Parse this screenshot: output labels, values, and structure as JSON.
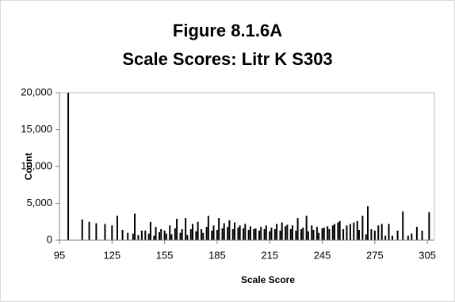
{
  "chart_data": {
    "type": "bar",
    "title": [
      "Figure 8.1.6A",
      "Scale Scores: Litr K S303"
    ],
    "x_label": "Scale Score",
    "y_label": "Count",
    "color": "#000000",
    "x": [
      100,
      108,
      112,
      116,
      121,
      125,
      128,
      131,
      134,
      137,
      138,
      140,
      142,
      144,
      146,
      147,
      149,
      150,
      152,
      153,
      155,
      156,
      158,
      159,
      161,
      162,
      164,
      165,
      167,
      168,
      170,
      171,
      173,
      174,
      176,
      177,
      179,
      180,
      182,
      183,
      185,
      186,
      188,
      189,
      191,
      192,
      194,
      195,
      197,
      198,
      200,
      201,
      203,
      204,
      206,
      207,
      209,
      210,
      212,
      213,
      215,
      216,
      218,
      219,
      221,
      222,
      224,
      225,
      227,
      228,
      230,
      231,
      233,
      234,
      236,
      237,
      239,
      240,
      242,
      243,
      245,
      246,
      248,
      249,
      251,
      252,
      254,
      255,
      257,
      259,
      261,
      263,
      265,
      266,
      268,
      270,
      271,
      273,
      275,
      277,
      279,
      281,
      283,
      285,
      288,
      291,
      294,
      296,
      299,
      302,
      306
    ],
    "values": [
      20000,
      2800,
      2500,
      2300,
      2200,
      2000,
      3300,
      1400,
      1000,
      900,
      3600,
      700,
      1300,
      1300,
      900,
      2500,
      600,
      1800,
      1100,
      1500,
      1300,
      900,
      2000,
      800,
      1600,
      2900,
      1000,
      1500,
      3000,
      700,
      1500,
      2200,
      1200,
      2500,
      1500,
      1000,
      1800,
      3300,
      1300,
      2000,
      1400,
      3000,
      1600,
      2300,
      1800,
      2700,
      1500,
      2400,
      1700,
      2000,
      1600,
      2200,
      1400,
      1900,
      1500,
      1600,
      1300,
      1800,
      1500,
      2000,
      1200,
      1700,
      1500,
      2200,
      1300,
      2400,
      1900,
      2100,
      1500,
      2000,
      1300,
      3000,
      1500,
      1700,
      3300,
      1200,
      2000,
      1400,
      1800,
      1000,
      1600,
      1700,
      1900,
      1500,
      2000,
      2200,
      2400,
      2600,
      1500,
      2000,
      2200,
      2400,
      2600,
      1400,
      3300,
      800,
      4600,
      1500,
      1300,
      2000,
      2200,
      600,
      2200,
      600,
      1300,
      3900,
      600,
      900,
      1800,
      1300,
      3800
    ],
    "xlim": [
      95,
      309
    ],
    "xticks": [
      95,
      125,
      155,
      185,
      215,
      245,
      275,
      305
    ],
    "ylim": [
      0,
      20000
    ],
    "yticks": [
      0,
      {
        "value": 5000,
        "label": "5,000"
      },
      {
        "value": 10000,
        "label": "10,000"
      },
      {
        "value": 15000,
        "label": "15,000"
      },
      {
        "value": 20000,
        "label": "20,000"
      }
    ]
  }
}
